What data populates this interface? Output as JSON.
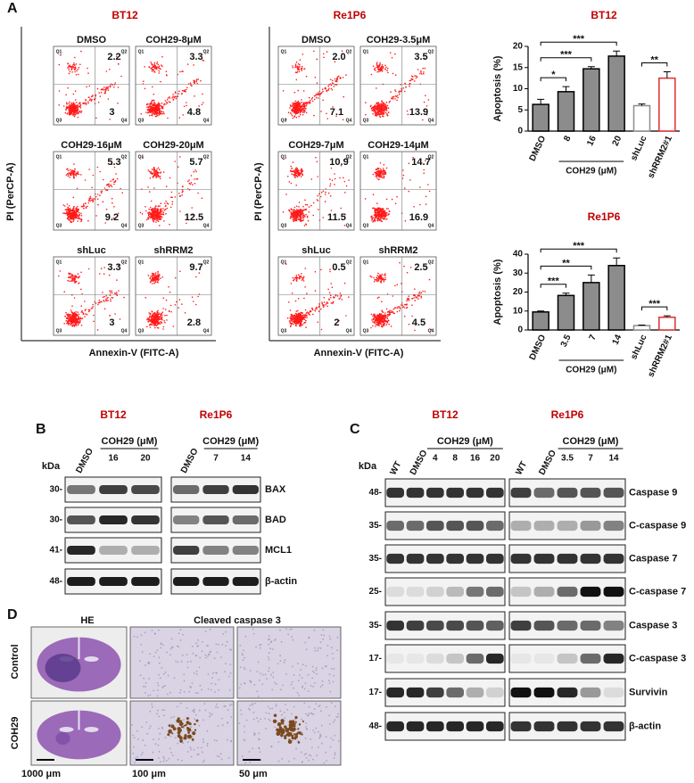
{
  "panel_labels": [
    "A",
    "B",
    "C",
    "D"
  ],
  "flow": [
    {
      "title": "BT12",
      "y_label": "PI (PerCP-A)",
      "x_label": "Annexin-V (FITC-A)",
      "plots": [
        {
          "title": "DMSO",
          "upper": "2.2",
          "lower": "3"
        },
        {
          "title": "COH29-8μM",
          "upper": "3.3",
          "lower": "4.8"
        },
        {
          "title": "COH29-16μM",
          "upper": "5.3",
          "lower": "9.2"
        },
        {
          "title": "COH29-20μM",
          "upper": "5.7",
          "lower": "12.5"
        },
        {
          "title": "shLuc",
          "upper": "3.3",
          "lower": "3"
        },
        {
          "title": "shRRM2",
          "upper": "9.7",
          "lower": "2.8"
        }
      ]
    },
    {
      "title": "Re1P6",
      "y_label": "PI (PerCP-A)",
      "x_label": "Annexin-V (FITC-A)",
      "plots": [
        {
          "title": "DMSO",
          "upper": "2.0",
          "lower": "7.1"
        },
        {
          "title": "COH29-3.5μM",
          "upper": "3.5",
          "lower": "13.9"
        },
        {
          "title": "COH29-7μM",
          "upper": "10.9",
          "lower": "11.5"
        },
        {
          "title": "COH29-14μM",
          "upper": "14.7",
          "lower": "16.9"
        },
        {
          "title": "shLuc",
          "upper": "0.5",
          "lower": "2"
        },
        {
          "title": "shRRM2",
          "upper": "2.5",
          "lower": "4.5"
        }
      ]
    }
  ],
  "quadrant_labels": [
    "Q1",
    "Q2",
    "Q3",
    "Q4"
  ],
  "chart_data": [
    {
      "type": "bar",
      "title": "BT12",
      "y_label": "Apoptosis (%)",
      "categories": [
        "DMSO",
        "8",
        "16",
        "20",
        "shLuc",
        "shRRM2#1"
      ],
      "values": [
        6.3,
        9.3,
        14.7,
        17.7,
        6.0,
        12.5
      ],
      "errors": [
        1.2,
        1.2,
        0.5,
        1.2,
        0.4,
        1.5
      ],
      "colors": [
        "#8c8c8c",
        "#8c8c8c",
        "#8c8c8c",
        "#8c8c8c",
        "#ffffff",
        "#ffffff"
      ],
      "edge_colors": [
        "#000000",
        "#000000",
        "#000000",
        "#000000",
        "#8c8c8c",
        "#e03030"
      ],
      "ylim": [
        0,
        20
      ],
      "yticks": [
        0,
        5,
        10,
        15,
        20
      ],
      "group_label": "COH29 (μM)",
      "significance": [
        "*",
        "***",
        "***",
        "**"
      ]
    },
    {
      "type": "bar",
      "title": "Re1P6",
      "y_label": "Apoptosis (%)",
      "categories": [
        "DMSO",
        "3.5",
        "7",
        "14",
        "shLuc",
        "shRRM2#1"
      ],
      "values": [
        9.5,
        18.2,
        25,
        34,
        2.3,
        6.7
      ],
      "errors": [
        0.5,
        1.2,
        4,
        4,
        0.3,
        0.8
      ],
      "colors": [
        "#8c8c8c",
        "#8c8c8c",
        "#8c8c8c",
        "#8c8c8c",
        "#ffffff",
        "#ffffff"
      ],
      "edge_colors": [
        "#000000",
        "#000000",
        "#000000",
        "#000000",
        "#8c8c8c",
        "#e03030"
      ],
      "ylim": [
        0,
        40
      ],
      "yticks": [
        0,
        10,
        20,
        30,
        40
      ],
      "group_label": "COH29 (μM)",
      "significance": [
        "***",
        "**",
        "***",
        "***"
      ]
    }
  ],
  "blots_b": {
    "kda": "kDa",
    "groups": [
      {
        "title": "BT12",
        "control_lanes": [
          "DMSO"
        ],
        "treatment": "COH29 (μM)",
        "dose_lanes": [
          "16",
          "20"
        ]
      },
      {
        "title": "Re1P6",
        "control_lanes": [
          "DMSO"
        ],
        "treatment": "COH29 (μM)",
        "dose_lanes": [
          "7",
          "14"
        ]
      }
    ],
    "markers": [
      "30-",
      "30-",
      "41-",
      "48-"
    ],
    "proteins": [
      "BAX",
      "BAD",
      "MCL1",
      "β-actin"
    ]
  },
  "blots_c": {
    "kda": "kDa",
    "groups": [
      {
        "title": "BT12",
        "control_lanes": [
          "WT",
          "DMSO"
        ],
        "treatment": "COH29 (μM)",
        "dose_lanes": [
          "4",
          "8",
          "16",
          "20"
        ]
      },
      {
        "title": "Re1P6",
        "control_lanes": [
          "WT",
          "DMSO"
        ],
        "treatment": "COH29 (μM)",
        "dose_lanes": [
          "3.5",
          "7",
          "14"
        ]
      }
    ],
    "markers": [
      "48-",
      "35-",
      "35-",
      "25-",
      "35-",
      "17-",
      "17-",
      "48-"
    ],
    "proteins": [
      "Caspase 9",
      "C-caspase 9",
      "Caspase 7",
      "C-caspase 7",
      "Caspase 3",
      "C-caspase 3",
      "Survivin",
      "β-actin"
    ]
  },
  "histology": {
    "columns": [
      "HE",
      "Cleaved caspase 3"
    ],
    "rows": [
      "Control",
      "COH29"
    ],
    "scale_bars": [
      "1000 μm",
      "100 μm",
      "50 μm"
    ]
  }
}
